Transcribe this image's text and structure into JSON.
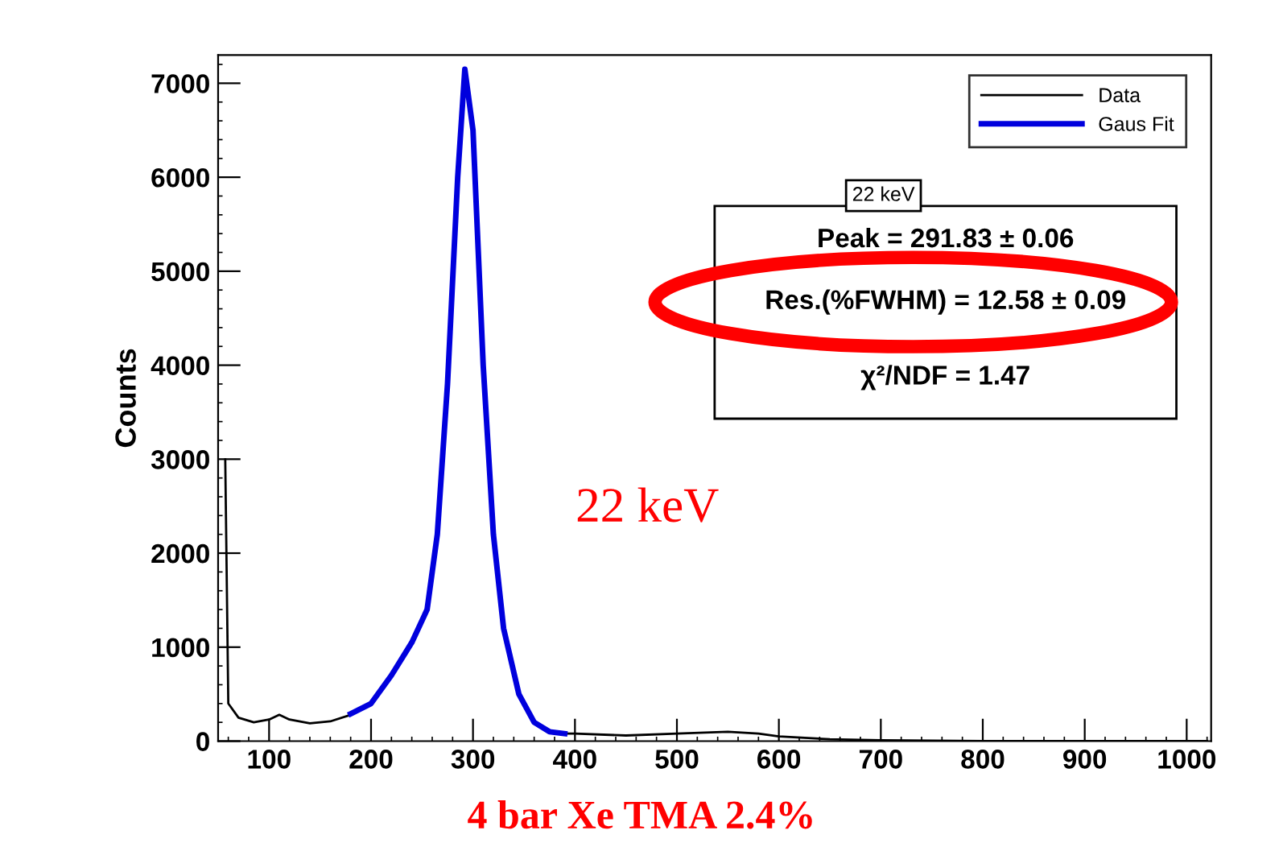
{
  "chart_data": {
    "type": "line",
    "ylabel": "Counts",
    "xlim": [
      50,
      1024
    ],
    "ylim": [
      0,
      7300
    ],
    "xticks": [
      100,
      200,
      300,
      400,
      500,
      600,
      700,
      800,
      900,
      1000
    ],
    "yticks": [
      0,
      1000,
      2000,
      3000,
      4000,
      5000,
      6000,
      7000
    ],
    "grid": false,
    "legend": "top right",
    "marker": "none",
    "line_style": "solid",
    "series": [
      {
        "name": "Data",
        "color": "#000000",
        "x": [
          57,
          60,
          70,
          85,
          100,
          110,
          120,
          140,
          160,
          180,
          200,
          220,
          240,
          255,
          265,
          275,
          285,
          292,
          300,
          310,
          320,
          330,
          345,
          360,
          375,
          390,
          400,
          450,
          500,
          550,
          580,
          600,
          650,
          700,
          800,
          900,
          1000,
          1020
        ],
        "values": [
          3000,
          400,
          250,
          200,
          230,
          280,
          230,
          190,
          210,
          280,
          null,
          null,
          null,
          null,
          null,
          null,
          null,
          null,
          null,
          null,
          null,
          null,
          null,
          null,
          null,
          80,
          80,
          60,
          80,
          100,
          80,
          50,
          20,
          10,
          0,
          0,
          0,
          0
        ]
      },
      {
        "name": "Gaus Fit",
        "color": "#0000dd",
        "x": [
          180,
          200,
          220,
          240,
          255,
          265,
          275,
          285,
          292,
          300,
          310,
          320,
          330,
          345,
          360,
          375,
          390
        ],
        "values": [
          290,
          400,
          700,
          1050,
          1400,
          2200,
          3800,
          6000,
          7150,
          6500,
          4000,
          2200,
          1200,
          500,
          200,
          100,
          80
        ]
      }
    ],
    "annotations": [
      "22 keV",
      "Peak = 291.83 ± 0.06",
      "Res.(%FWHM) = 12.58 ± 0.09",
      "χ²/NDF = 1.47",
      "22 keV",
      "4 bar Xe TMA 2.4%"
    ]
  }
}
